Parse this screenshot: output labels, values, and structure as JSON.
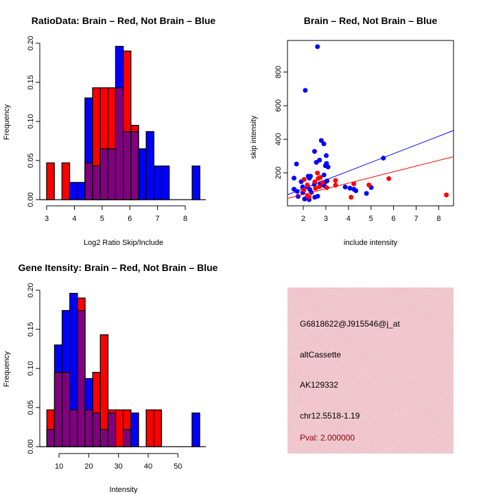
{
  "chart_data": [
    {
      "type": "bar",
      "subtype": "overlapping-histogram",
      "title": "RatioData: Brain – Red, Not Brain – Blue",
      "xlabel": "Log2 Ratio Skip/Include",
      "ylabel": "Frequency",
      "xlim": [
        3,
        8
      ],
      "ylim": [
        0,
        0.2
      ],
      "xticks": [
        "3",
        "4",
        "5",
        "6",
        "7",
        "8"
      ],
      "yticks": [
        "0.00",
        "0.05",
        "0.10",
        "0.15",
        "0.20"
      ],
      "bin_start": 3.0,
      "bin_width": 0.2763,
      "series": [
        {
          "name": "Brain",
          "color": "#ff0000",
          "values": [
            0.047,
            0,
            0.047,
            0,
            0,
            0.047,
            0.143,
            0.143,
            0.143,
            0.143,
            0.19,
            0.095,
            0,
            0,
            0,
            0,
            0,
            0,
            0,
            0
          ]
        },
        {
          "name": "Not Brain",
          "color": "#0000ff",
          "values": [
            0,
            0,
            0,
            0.022,
            0.022,
            0.13,
            0.043,
            0.065,
            0.065,
            0.196,
            0.087,
            0.087,
            0.065,
            0.087,
            0.043,
            0.043,
            0,
            0,
            0,
            0.043
          ]
        }
      ],
      "overlap_color": "#800080"
    },
    {
      "type": "scatter",
      "title": "Brain – Red, Not Brain – Blue",
      "xlabel": "include intensity",
      "ylabel": "skip intensity",
      "xlim": [
        1.3,
        8.67
      ],
      "ylim": [
        4,
        988
      ],
      "xticks": [
        "2",
        "3",
        "4",
        "5",
        "6",
        "7",
        "8"
      ],
      "yticks": [
        "200",
        "400",
        "600",
        "800"
      ],
      "series": [
        {
          "name": "Not Brain",
          "color": "#0000ff",
          "points": [
            [
              2.63,
              951
            ],
            [
              2.09,
              691
            ],
            [
              2.8,
              393
            ],
            [
              2.91,
              373
            ],
            [
              2.5,
              328
            ],
            [
              3.02,
              303
            ],
            [
              2.72,
              276
            ],
            [
              2.58,
              263
            ],
            [
              1.7,
              253
            ],
            [
              3.03,
              256
            ],
            [
              2.98,
              243
            ],
            [
              3.1,
              235
            ],
            [
              5.55,
              288
            ],
            [
              2.92,
              188
            ],
            [
              1.59,
              169
            ],
            [
              2.22,
              180
            ],
            [
              2.32,
              180
            ],
            [
              2.27,
              169
            ],
            [
              1.91,
              148
            ],
            [
              3.05,
              152
            ],
            [
              2.96,
              144
            ],
            [
              2.75,
              136
            ],
            [
              2.49,
              131
            ],
            [
              2.91,
              125
            ],
            [
              1.97,
              117
            ],
            [
              2.19,
              117
            ],
            [
              1.59,
              103
            ],
            [
              1.73,
              90
            ],
            [
              2.29,
              101
            ],
            [
              2.36,
              84
            ],
            [
              1.98,
              82
            ],
            [
              1.77,
              60
            ],
            [
              2.06,
              45
            ],
            [
              2.26,
              41
            ],
            [
              2.51,
              55
            ],
            [
              2.64,
              61
            ],
            [
              3.86,
              116
            ],
            [
              4.07,
              109
            ],
            [
              4.24,
              103
            ],
            [
              4.33,
              94
            ],
            [
              4.8,
              78
            ],
            [
              5.01,
              113
            ]
          ],
          "fit_line": [
            [
              1.3,
              70
            ],
            [
              8.67,
              453
            ]
          ]
        },
        {
          "name": "Brain",
          "color": "#ff0000",
          "points": [
            [
              2.63,
              199
            ],
            [
              2.04,
              161
            ],
            [
              2.75,
              173
            ],
            [
              2.66,
              167
            ],
            [
              2.18,
              128
            ],
            [
              2.51,
              147
            ],
            [
              2.54,
              108
            ],
            [
              2.71,
              117
            ],
            [
              2.85,
              142
            ],
            [
              3.04,
              112
            ],
            [
              3.43,
              155
            ],
            [
              3.43,
              127
            ],
            [
              4.24,
              135
            ],
            [
              4.91,
              128
            ],
            [
              5.79,
              166
            ],
            [
              4.12,
              55
            ],
            [
              8.34,
              69
            ],
            [
              2.03,
              98
            ],
            [
              2.26,
              57
            ],
            [
              2.18,
              62
            ]
          ],
          "fit_line": [
            [
              1.3,
              48
            ],
            [
              8.67,
              297
            ]
          ]
        }
      ]
    },
    {
      "type": "bar",
      "subtype": "overlapping-histogram",
      "title": "Gene Itensity: Brain – Red, Not Brain – Blue",
      "xlabel": "Intensity",
      "ylabel": "Frequency",
      "xlim": [
        10,
        50
      ],
      "ylim": [
        0,
        0.2
      ],
      "xticks": [
        "10",
        "20",
        "30",
        "40",
        "50"
      ],
      "yticks": [
        "0.00",
        "0.05",
        "0.10",
        "0.15",
        "0.20"
      ],
      "bin_start": 5.92,
      "bin_width": 2.57,
      "series": [
        {
          "name": "Brain",
          "color": "#ff0000",
          "values": [
            0.047,
            0.095,
            0.095,
            0.047,
            0.19,
            0.047,
            0.095,
            0.143,
            0.047,
            0.047,
            0.047,
            0,
            0,
            0.047,
            0.047,
            0,
            0,
            0,
            0,
            0
          ]
        },
        {
          "name": "Not Brain",
          "color": "#0000ff",
          "values": [
            0.022,
            0.13,
            0.174,
            0.196,
            0.174,
            0.087,
            0.043,
            0.022,
            0.043,
            0,
            0.022,
            0.043,
            0,
            0,
            0,
            0,
            0,
            0,
            0,
            0.043
          ]
        }
      ],
      "overlap_color": "#800080"
    }
  ],
  "info": {
    "probe_id": "G6818622@J915546@j_at",
    "event_type": "altCassette",
    "accession": "AK129332",
    "location": "chr12.5518-1.19",
    "pval": "Pval: 2.000000",
    "pval_color": "#8b0000"
  }
}
